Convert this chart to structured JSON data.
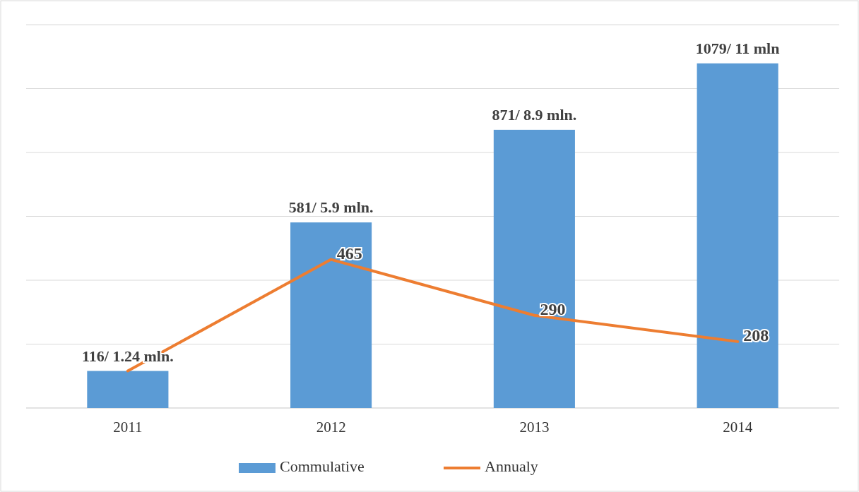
{
  "chart_data": {
    "type": "bar",
    "categories": [
      "2011",
      "2012",
      "2013",
      "2014"
    ],
    "ylim": [
      0,
      1200
    ],
    "yticks": [
      {
        "value": 0,
        "label": null
      },
      {
        "value": 200,
        "label": null
      },
      {
        "value": 400,
        "label": null
      },
      {
        "value": 600,
        "label": null
      },
      {
        "value": 800,
        "label": null
      },
      {
        "value": 1000,
        "label": null
      },
      {
        "value": 1200,
        "label": null
      }
    ],
    "tick_labels": "x",
    "grid": "y",
    "legend": "bottom",
    "series": [
      {
        "name": "Commulative",
        "color": "#5b9bd5",
        "values": [
          116,
          581,
          871,
          1079
        ],
        "value_labels": [
          "116/ 1.24 mln.",
          "581/ 5.9 mln.",
          "871/ 8.9 mln.",
          "1079/ 11 mln"
        ]
      },
      {
        "name": "Annualy",
        "type": "line",
        "color": "#ed7d31",
        "values": [
          116,
          465,
          290,
          208
        ],
        "value_labels": [
          null,
          "465",
          "290",
          "208"
        ]
      }
    ]
  }
}
